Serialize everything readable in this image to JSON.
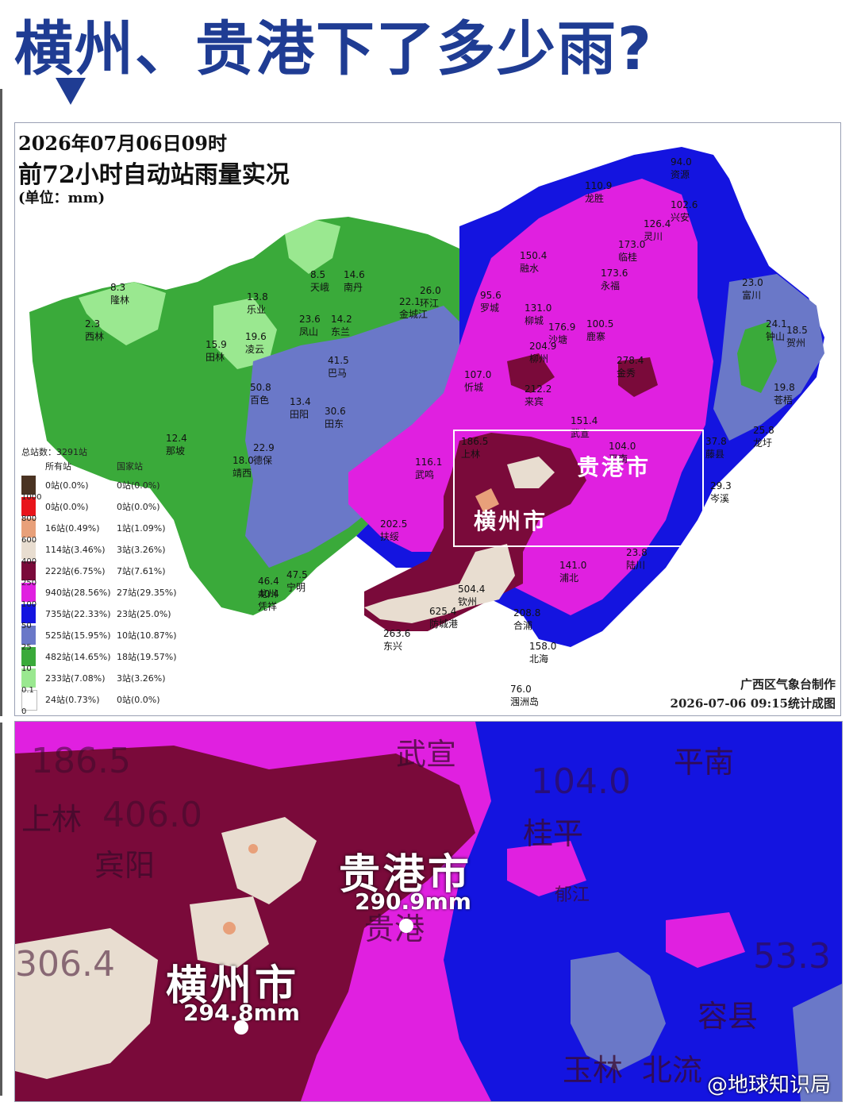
{
  "headline": "横州、贵港下了多少雨?",
  "map": {
    "title_line1": "2026年07月06日09时",
    "title_line2": "前72小时自动站雨量实况",
    "title_line3": "(单位：mm)",
    "credit_line1": "广西区气象台制作",
    "credit_line2": "2026-07-06 09:15统计成图",
    "legend": {
      "total": "总站数：3291站",
      "col_all": "所有站",
      "col_national": "国家站",
      "rows": [
        {
          "color": "#4a3322",
          "all": "0站(0.0%)",
          "national": "0站(0.0%)"
        },
        {
          "color": "#e8141a",
          "all": "0站(0.0%)",
          "national": "0站(0.0%)"
        },
        {
          "color": "#e8a07a",
          "all": "16站(0.49%)",
          "national": "1站(1.09%)"
        },
        {
          "color": "#e8ddd0",
          "all": "114站(3.46%)",
          "national": "3站(3.26%)"
        },
        {
          "color": "#7a0a3a",
          "all": "222站(6.75%)",
          "national": "7站(7.61%)"
        },
        {
          "color": "#e020e0",
          "all": "940站(28.56%)",
          "national": "27站(29.35%)"
        },
        {
          "color": "#1414e0",
          "all": "735站(22.33%)",
          "national": "23站(25.0%)"
        },
        {
          "color": "#6a78c8",
          "all": "525站(15.95%)",
          "national": "10站(10.87%)"
        },
        {
          "color": "#3aaa3a",
          "all": "482站(14.65%)",
          "national": "18站(19.57%)"
        },
        {
          "color": "#9ae890",
          "all": "233站(7.08%)",
          "national": "3站(3.26%)"
        },
        {
          "color": "#ffffff",
          "all": "24站(0.73%)",
          "national": "0站(0.0%)"
        }
      ],
      "bounds": [
        "1000",
        "800",
        "600",
        "400",
        "250",
        "100",
        "50",
        "25",
        "10",
        "0.1",
        "0"
      ]
    },
    "stations": [
      {
        "name": "隆林",
        "value": "8.3"
      },
      {
        "name": "西林",
        "value": "2.3"
      },
      {
        "name": "田林",
        "value": "15.9"
      },
      {
        "name": "乐业",
        "value": "13.8"
      },
      {
        "name": "凌云",
        "value": "19.6"
      },
      {
        "name": "天峨",
        "value": "8.5"
      },
      {
        "name": "南丹",
        "value": "14.6"
      },
      {
        "name": "凤山",
        "value": "23.6"
      },
      {
        "name": "东兰",
        "value": "14.2"
      },
      {
        "name": "巴马",
        "value": "41.5"
      },
      {
        "name": "金城江",
        "value": "22.1"
      },
      {
        "name": "环江",
        "value": "26.0"
      },
      {
        "name": "百色",
        "value": "50.8"
      },
      {
        "name": "田阳",
        "value": "13.4"
      },
      {
        "name": "田东",
        "value": "30.6"
      },
      {
        "name": "那坡",
        "value": "12.4"
      },
      {
        "name": "德保",
        "value": "22.9"
      },
      {
        "name": "靖西",
        "value": "18.0"
      },
      {
        "name": "罗城",
        "value": "95.6"
      },
      {
        "name": "融水",
        "value": "150.4"
      },
      {
        "name": "龙胜",
        "value": "110.9"
      },
      {
        "name": "资源",
        "value": "94.0"
      },
      {
        "name": "兴安",
        "value": "102.6"
      },
      {
        "name": "灵川",
        "value": "126.4"
      },
      {
        "name": "临桂",
        "value": "173.0"
      },
      {
        "name": "永福",
        "value": "173.6"
      },
      {
        "name": "柳城",
        "value": "131.0"
      },
      {
        "name": "鹿寨",
        "value": "100.5"
      },
      {
        "name": "柳州",
        "value": "204.9"
      },
      {
        "name": "沙塘",
        "value": "176.9"
      },
      {
        "name": "忻城",
        "value": "107.0"
      },
      {
        "name": "金秀",
        "value": "278.4"
      },
      {
        "name": "来宾",
        "value": "212.2"
      },
      {
        "name": "武宣",
        "value": "151.4"
      },
      {
        "name": "上林",
        "value": "186.5"
      },
      {
        "name": "武鸣",
        "value": "116.1"
      },
      {
        "name": "扶绥",
        "value": "202.5"
      },
      {
        "name": "宁明",
        "value": "47.5"
      },
      {
        "name": "龙州",
        "value": "46.4"
      },
      {
        "name": "凭祥",
        "value": "40.4"
      },
      {
        "name": "钦州",
        "value": "504.4"
      },
      {
        "name": "防城港",
        "value": "625.4"
      },
      {
        "name": "东兴",
        "value": "263.6"
      },
      {
        "name": "合浦",
        "value": "208.8"
      },
      {
        "name": "北海",
        "value": "158.0"
      },
      {
        "name": "涠洲岛",
        "value": "76.0"
      },
      {
        "name": "富川",
        "value": "23.0"
      },
      {
        "name": "钟山",
        "value": "24.1"
      },
      {
        "name": "贺州",
        "value": "18.5"
      },
      {
        "name": "苍梧",
        "value": "19.8"
      },
      {
        "name": "龙圩",
        "value": "25.8"
      },
      {
        "name": "藤县",
        "value": "37.8"
      },
      {
        "name": "岑溪",
        "value": "29.3"
      },
      {
        "name": "平南",
        "value": "104.0"
      },
      {
        "name": "陆川",
        "value": "23.8"
      },
      {
        "name": "浦北",
        "value": "141.0"
      }
    ],
    "highlight": {
      "guigang": "贵港市",
      "hengzhou": "横州市"
    }
  },
  "zoom": {
    "labels": [
      {
        "text": "186.5"
      },
      {
        "text": "上林"
      },
      {
        "text": "406.0"
      },
      {
        "text": "宾阳"
      },
      {
        "text": "武宣"
      },
      {
        "text": "104.0"
      },
      {
        "text": "桂平"
      },
      {
        "text": "平南"
      },
      {
        "text": "贵港"
      },
      {
        "text": "306.4"
      },
      {
        "text": "玉林"
      },
      {
        "text": "北流"
      },
      {
        "text": "53.3"
      },
      {
        "text": "容县"
      },
      {
        "text": "郁江"
      }
    ],
    "guigang_name": "贵港市",
    "guigang_amount": "290.9mm",
    "hengzhou_name": "横州市",
    "hengzhou_amount": "294.8mm"
  },
  "watermark": "@地球知识局"
}
